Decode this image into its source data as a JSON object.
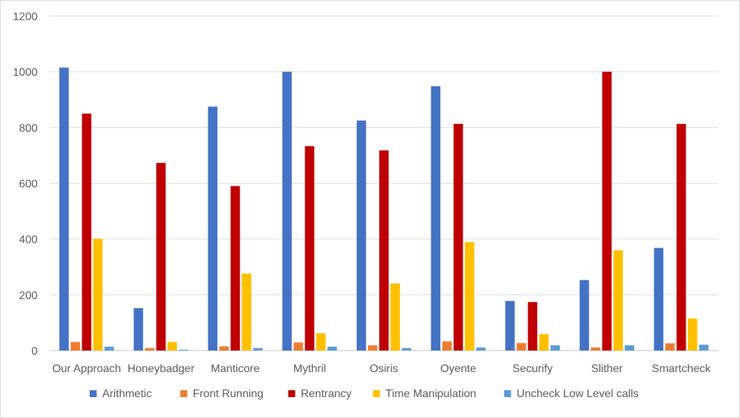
{
  "chart_data": {
    "type": "bar",
    "title": "",
    "xlabel": "",
    "ylabel": "",
    "categories": [
      "Our Approach",
      "Honeybadger",
      "Manticore",
      "Mythril",
      "Osiris",
      "Oyente",
      "Securify",
      "Slither",
      "Smartcheck"
    ],
    "ylim": [
      0,
      1200
    ],
    "yticks": [
      0,
      200,
      400,
      600,
      800,
      1000,
      1200
    ],
    "grid": true,
    "legend_position": "bottom",
    "series": [
      {
        "name": "Arithmetic",
        "color": "#4472c4",
        "values": [
          1015,
          152,
          875,
          1000,
          825,
          948,
          178,
          253,
          368
        ]
      },
      {
        "name": "Front Running",
        "color": "#ed7d31",
        "values": [
          31,
          9,
          15,
          29,
          19,
          33,
          27,
          11,
          26
        ]
      },
      {
        "name": "Rentrancy",
        "color": "#c00000",
        "values": [
          850,
          673,
          590,
          733,
          718,
          813,
          174,
          1000,
          813
        ]
      },
      {
        "name": "Time Manipulation",
        "color": "#ffc000",
        "values": [
          401,
          31,
          276,
          62,
          241,
          389,
          59,
          360,
          115
        ]
      },
      {
        "name": "Uncheck Low Level calls",
        "color": "#5b9bd5",
        "values": [
          14,
          3,
          9,
          14,
          9,
          11,
          19,
          19,
          21
        ]
      }
    ]
  }
}
